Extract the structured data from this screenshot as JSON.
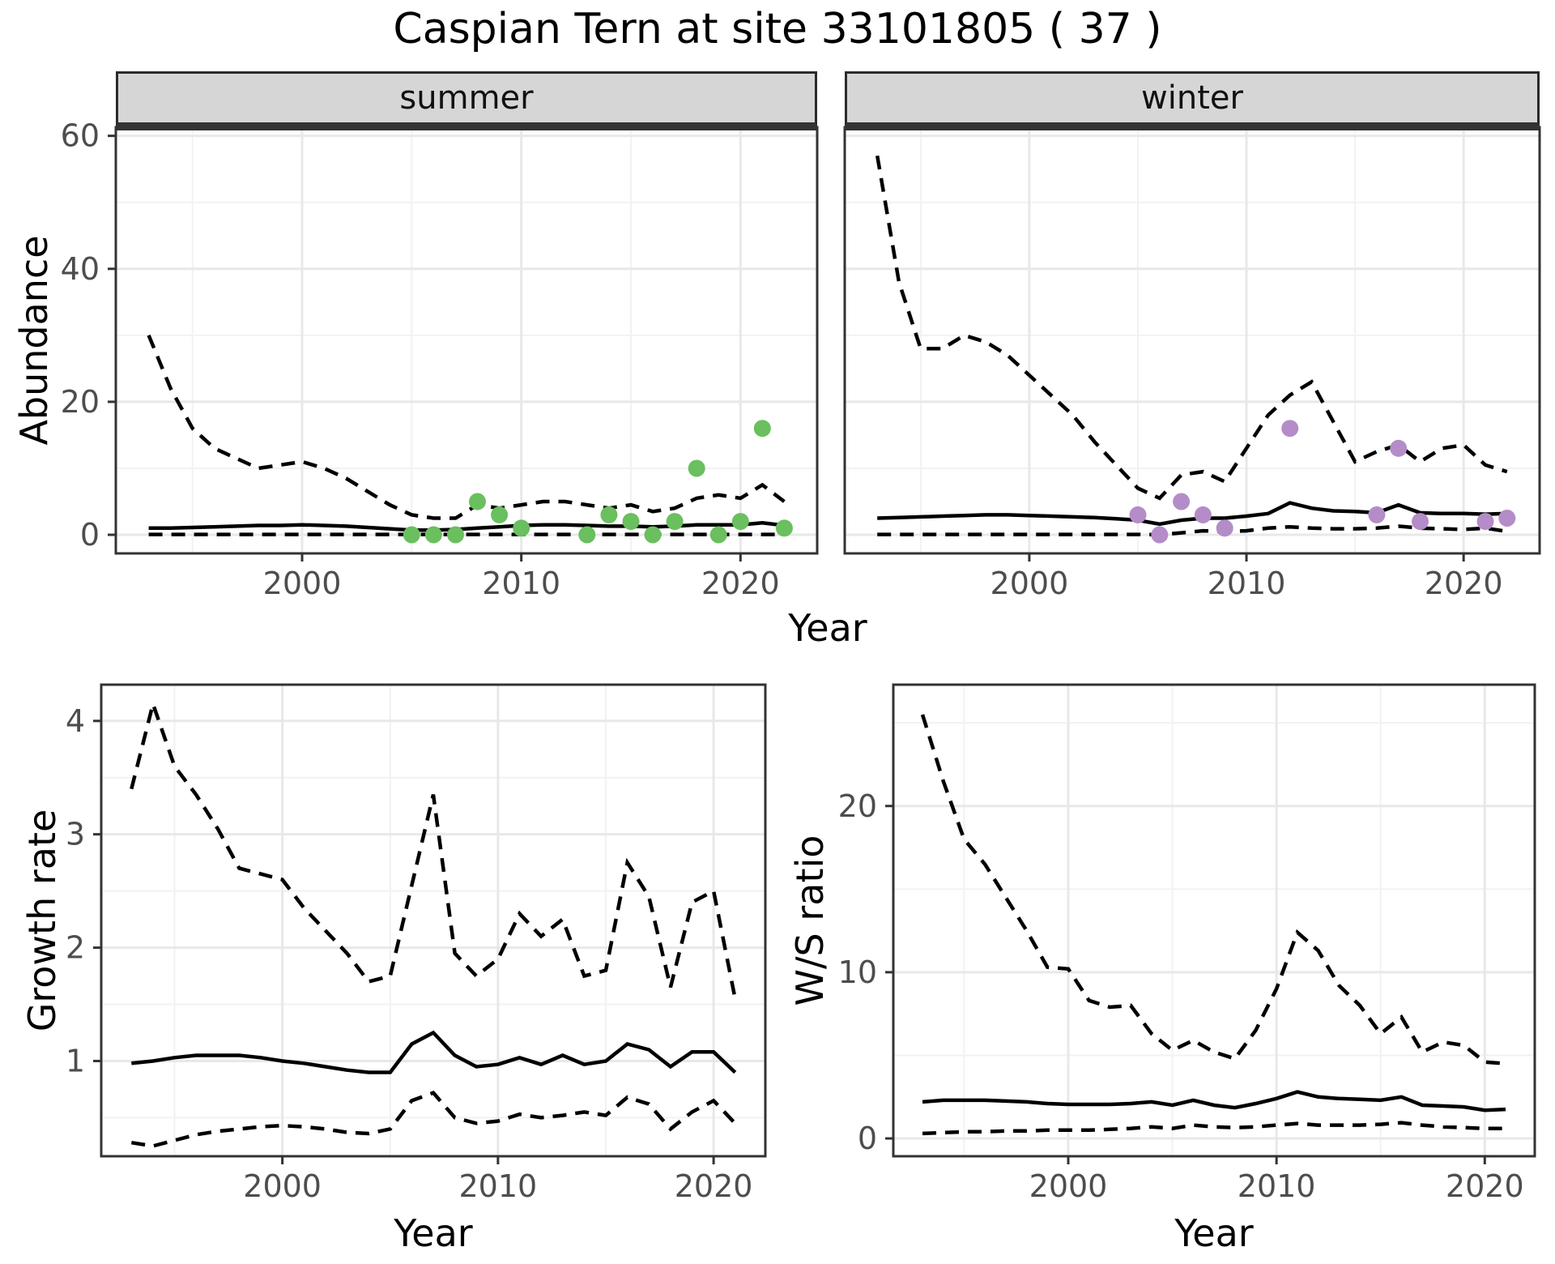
{
  "title": "Caspian Tern at site 33101805 ( 37 )",
  "facets": {
    "summer": "summer",
    "winter": "winter"
  },
  "axis_labels": {
    "x": "Year",
    "abundance": "Abundance",
    "growth": "Growth rate",
    "ws": "W/S ratio"
  },
  "colors": {
    "summer_points": "#6abf5f",
    "winter_points": "#b48cc8",
    "line": "#000000",
    "panel_border": "#333333",
    "grid_major": "#e8e8e8",
    "grid_minor": "#f2f2f2",
    "strip_fill": "#d6d6d6",
    "tick_text": "#4d4d4d"
  },
  "chart_data": [
    {
      "id": "abundance_summer",
      "type": "line",
      "facet": "summer",
      "xlabel": "Year",
      "ylabel": "Abundance",
      "xticks": [
        2000,
        2010,
        2020
      ],
      "xminor": [
        1995,
        2005,
        2015
      ],
      "yticks": [
        0,
        20,
        40,
        60
      ],
      "yminor": [
        10,
        30,
        50
      ],
      "xlim": [
        1991.5,
        2023.5
      ],
      "ylim": [
        -2.8,
        61.3
      ],
      "x": [
        1993,
        1994,
        1995,
        1996,
        1997,
        1998,
        1999,
        2000,
        2001,
        2002,
        2003,
        2004,
        2005,
        2006,
        2007,
        2008,
        2009,
        2010,
        2011,
        2012,
        2013,
        2014,
        2015,
        2016,
        2017,
        2018,
        2019,
        2020,
        2021,
        2022
      ],
      "series": [
        {
          "name": "upper_95ci",
          "style": "dashed",
          "values": [
            30,
            22,
            16,
            13,
            11.5,
            10,
            10.5,
            11,
            10,
            8.5,
            6.5,
            4.5,
            3,
            2.5,
            2.5,
            4.5,
            4,
            4.5,
            5,
            5,
            4.5,
            4,
            4.5,
            3.5,
            4,
            5.5,
            6,
            5.5,
            7.5,
            5
          ]
        },
        {
          "name": "median",
          "style": "solid",
          "values": [
            1,
            1,
            1.1,
            1.2,
            1.3,
            1.4,
            1.4,
            1.5,
            1.4,
            1.3,
            1.1,
            0.9,
            0.7,
            0.7,
            0.8,
            1,
            1.2,
            1.4,
            1.5,
            1.5,
            1.4,
            1.3,
            1.3,
            1.2,
            1.3,
            1.5,
            1.5,
            1.5,
            1.8,
            1.4
          ]
        },
        {
          "name": "lower_95ci",
          "style": "dashed",
          "values": [
            0.05,
            0.05,
            0.05,
            0.05,
            0.05,
            0.05,
            0.05,
            0.05,
            0.05,
            0.05,
            0.05,
            0.05,
            0.05,
            0.05,
            0.05,
            0.05,
            0.05,
            0.05,
            0.05,
            0.05,
            0.05,
            0.05,
            0.05,
            0.05,
            0.05,
            0.05,
            0.05,
            0.05,
            0.05,
            0.05
          ]
        }
      ],
      "points": {
        "name": "observed_summer_counts",
        "color": "#6abf5f",
        "x": [
          2005,
          2006,
          2007,
          2008,
          2009,
          2010,
          2013,
          2014,
          2015,
          2016,
          2017,
          2018,
          2019,
          2020,
          2021,
          2022
        ],
        "y": [
          0,
          0,
          0,
          5,
          3,
          1,
          0,
          3,
          2,
          0,
          2,
          10,
          0,
          2,
          16,
          1
        ]
      }
    },
    {
      "id": "abundance_winter",
      "type": "line",
      "facet": "winter",
      "xlabel": "Year",
      "ylabel": "Abundance",
      "xticks": [
        2000,
        2010,
        2020
      ],
      "xminor": [
        1995,
        2005,
        2015
      ],
      "yticks": [],
      "yminor": [
        10,
        30,
        50
      ],
      "ygrid": [
        0,
        20,
        40,
        60
      ],
      "xlim": [
        1991.5,
        2023.5
      ],
      "ylim": [
        -2.8,
        61.3
      ],
      "x": [
        1993,
        1994,
        1995,
        1996,
        1997,
        1998,
        1999,
        2000,
        2001,
        2002,
        2003,
        2004,
        2005,
        2006,
        2007,
        2008,
        2009,
        2010,
        2011,
        2012,
        2013,
        2014,
        2015,
        2016,
        2017,
        2018,
        2019,
        2020,
        2021,
        2022
      ],
      "series": [
        {
          "name": "upper_95ci",
          "style": "dashed",
          "values": [
            57,
            38,
            28,
            28,
            30,
            29,
            27,
            24,
            21,
            18,
            14,
            10.5,
            7,
            5.5,
            9,
            9.5,
            8,
            13,
            18,
            21,
            23,
            17,
            11,
            12.5,
            13.5,
            11,
            13,
            13.5,
            10.5,
            9.5
          ]
        },
        {
          "name": "median",
          "style": "solid",
          "values": [
            2.5,
            2.6,
            2.7,
            2.8,
            2.9,
            3,
            3,
            2.9,
            2.8,
            2.7,
            2.6,
            2.4,
            2.2,
            1.6,
            2.2,
            2.5,
            2.5,
            2.8,
            3.2,
            4.8,
            4,
            3.6,
            3.5,
            3.3,
            4.5,
            3.3,
            3.2,
            3.2,
            3.1,
            3.2
          ]
        },
        {
          "name": "lower_95ci",
          "style": "dashed",
          "values": [
            0.05,
            0.05,
            0.05,
            0.05,
            0.05,
            0.05,
            0.05,
            0.05,
            0.05,
            0.05,
            0.05,
            0.05,
            0.05,
            0,
            0.3,
            0.6,
            0.5,
            0.6,
            1,
            1.2,
            1,
            0.9,
            0.9,
            1,
            1.3,
            1,
            0.9,
            0.8,
            1,
            0.5
          ]
        }
      ],
      "points": {
        "name": "observed_winter_counts",
        "color": "#b48cc8",
        "x": [
          2005,
          2006,
          2007,
          2008,
          2009,
          2012,
          2016,
          2017,
          2018,
          2021,
          2022
        ],
        "y": [
          3,
          0,
          5,
          3,
          1,
          16,
          3,
          13,
          2,
          2,
          2.5
        ]
      }
    },
    {
      "id": "growth_rate",
      "type": "line",
      "xlabel": "Year",
      "ylabel": "Growth rate",
      "xticks": [
        2000,
        2010,
        2020
      ],
      "xminor": [
        1995,
        2005,
        2015
      ],
      "yticks": [
        1,
        2,
        3,
        4
      ],
      "yminor": [
        0.5,
        1.5,
        2.5,
        3.5
      ],
      "xlim": [
        1991.6,
        2022.4
      ],
      "ylim": [
        0.16,
        4.32
      ],
      "x": [
        1993,
        1994,
        1995,
        1996,
        1997,
        1998,
        1999,
        2000,
        2001,
        2002,
        2003,
        2004,
        2005,
        2006,
        2007,
        2008,
        2009,
        2010,
        2011,
        2012,
        2013,
        2014,
        2015,
        2016,
        2017,
        2018,
        2019,
        2020,
        2021
      ],
      "series": [
        {
          "name": "upper_95ci",
          "style": "dashed",
          "values": [
            3.4,
            4.15,
            3.6,
            3.35,
            3.05,
            2.7,
            2.65,
            2.6,
            2.35,
            2.15,
            1.95,
            1.7,
            1.75,
            2.55,
            3.35,
            1.95,
            1.75,
            1.9,
            2.3,
            2.1,
            2.25,
            1.75,
            1.8,
            2.75,
            2.45,
            1.65,
            2.4,
            2.5,
            1.55
          ]
        },
        {
          "name": "median",
          "style": "solid",
          "values": [
            0.98,
            1,
            1.03,
            1.05,
            1.05,
            1.05,
            1.03,
            1,
            0.98,
            0.95,
            0.92,
            0.9,
            0.9,
            1.15,
            1.25,
            1.05,
            0.95,
            0.97,
            1.03,
            0.97,
            1.05,
            0.97,
            1,
            1.15,
            1.1,
            0.95,
            1.08,
            1.08,
            0.9
          ]
        },
        {
          "name": "lower_95ci",
          "style": "dashed",
          "values": [
            0.28,
            0.25,
            0.3,
            0.35,
            0.38,
            0.4,
            0.42,
            0.43,
            0.42,
            0.4,
            0.37,
            0.36,
            0.4,
            0.65,
            0.72,
            0.5,
            0.45,
            0.47,
            0.53,
            0.5,
            0.52,
            0.55,
            0.52,
            0.68,
            0.62,
            0.4,
            0.55,
            0.65,
            0.45
          ]
        }
      ]
    },
    {
      "id": "ws_ratio",
      "type": "line",
      "xlabel": "Year",
      "ylabel": "W/S ratio",
      "xticks": [
        2000,
        2010,
        2020
      ],
      "xminor": [
        1995,
        2005,
        2015
      ],
      "yticks": [
        0,
        10,
        20
      ],
      "yminor": [
        5,
        15,
        25
      ],
      "xlim": [
        1991.6,
        2022.4
      ],
      "ylim": [
        -1.07,
        27.3
      ],
      "x": [
        1993,
        1994,
        1995,
        1996,
        1997,
        1998,
        1999,
        2000,
        2001,
        2002,
        2003,
        2004,
        2005,
        2006,
        2007,
        2008,
        2009,
        2010,
        2011,
        2012,
        2013,
        2014,
        2015,
        2016,
        2017,
        2018,
        2019,
        2020,
        2021
      ],
      "series": [
        {
          "name": "upper_95ci",
          "style": "dashed",
          "values": [
            25.5,
            21.5,
            18,
            16.5,
            14.5,
            12.5,
            10.3,
            10.2,
            8.3,
            7.9,
            8,
            6.3,
            5.3,
            5.9,
            5.2,
            4.8,
            6.5,
            9,
            12.4,
            11.3,
            9.2,
            8,
            6.3,
            7.3,
            5.2,
            5.8,
            5.6,
            4.6,
            4.5
          ]
        },
        {
          "name": "median",
          "style": "solid",
          "values": [
            2.2,
            2.3,
            2.3,
            2.3,
            2.25,
            2.2,
            2.1,
            2.05,
            2.05,
            2.05,
            2.1,
            2.2,
            2,
            2.3,
            2,
            1.85,
            2.1,
            2.4,
            2.8,
            2.5,
            2.4,
            2.35,
            2.3,
            2.5,
            2,
            1.95,
            1.9,
            1.7,
            1.75
          ]
        },
        {
          "name": "lower_95ci",
          "style": "dashed",
          "values": [
            0.3,
            0.35,
            0.4,
            0.4,
            0.45,
            0.45,
            0.5,
            0.5,
            0.5,
            0.55,
            0.6,
            0.7,
            0.6,
            0.8,
            0.7,
            0.65,
            0.7,
            0.8,
            0.9,
            0.8,
            0.8,
            0.8,
            0.85,
            0.95,
            0.8,
            0.7,
            0.65,
            0.6,
            0.6
          ]
        }
      ]
    }
  ]
}
